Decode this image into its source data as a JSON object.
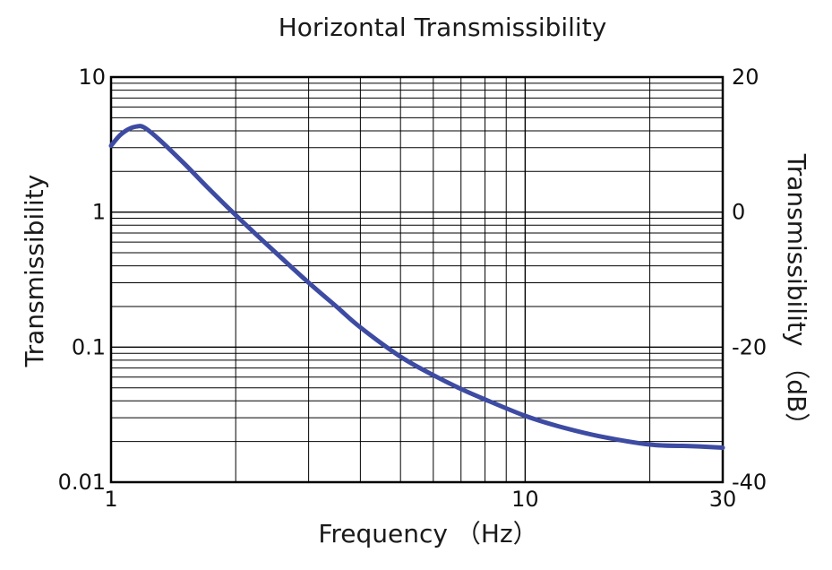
{
  "chart_data": {
    "type": "line",
    "title": "Horizontal Transmissibility",
    "xlabel": "Frequency （Hz）",
    "ylabel": "Transmissibility",
    "y2label": "Transmissibility （dB）",
    "xscale": "log",
    "yscale": "log",
    "xlim": [
      1,
      30
    ],
    "ylim": [
      0.01,
      10
    ],
    "y2lim": [
      -40,
      20
    ],
    "grid": true,
    "x_ticks": [
      {
        "value": 1,
        "label": "1"
      },
      {
        "value": 10,
        "label": "10"
      },
      {
        "value": 30,
        "label": "30"
      }
    ],
    "y_ticks": [
      {
        "value": 10,
        "label": "10"
      },
      {
        "value": 1,
        "label": "1"
      },
      {
        "value": 0.1,
        "label": "0.1"
      },
      {
        "value": 0.01,
        "label": "0.01"
      }
    ],
    "y2_ticks": [
      {
        "value": 20,
        "label": "20"
      },
      {
        "value": 0,
        "label": "0"
      },
      {
        "value": -20,
        "label": "-20"
      },
      {
        "value": -40,
        "label": "-40"
      }
    ],
    "series": [
      {
        "color": "#3d4ba3",
        "x": [
          1.0,
          1.05,
          1.1,
          1.15,
          1.2,
          1.3,
          1.5,
          1.7,
          2.0,
          2.5,
          3.0,
          3.5,
          4.0,
          5.0,
          6.0,
          7.0,
          8.0,
          10.0,
          12.0,
          15.0,
          20.0,
          25.0,
          30.0
        ],
        "y": [
          3.1,
          3.7,
          4.1,
          4.3,
          4.25,
          3.5,
          2.3,
          1.55,
          0.95,
          0.5,
          0.3,
          0.2,
          0.14,
          0.085,
          0.062,
          0.049,
          0.041,
          0.031,
          0.026,
          0.022,
          0.019,
          0.0185,
          0.018
        ]
      }
    ]
  }
}
